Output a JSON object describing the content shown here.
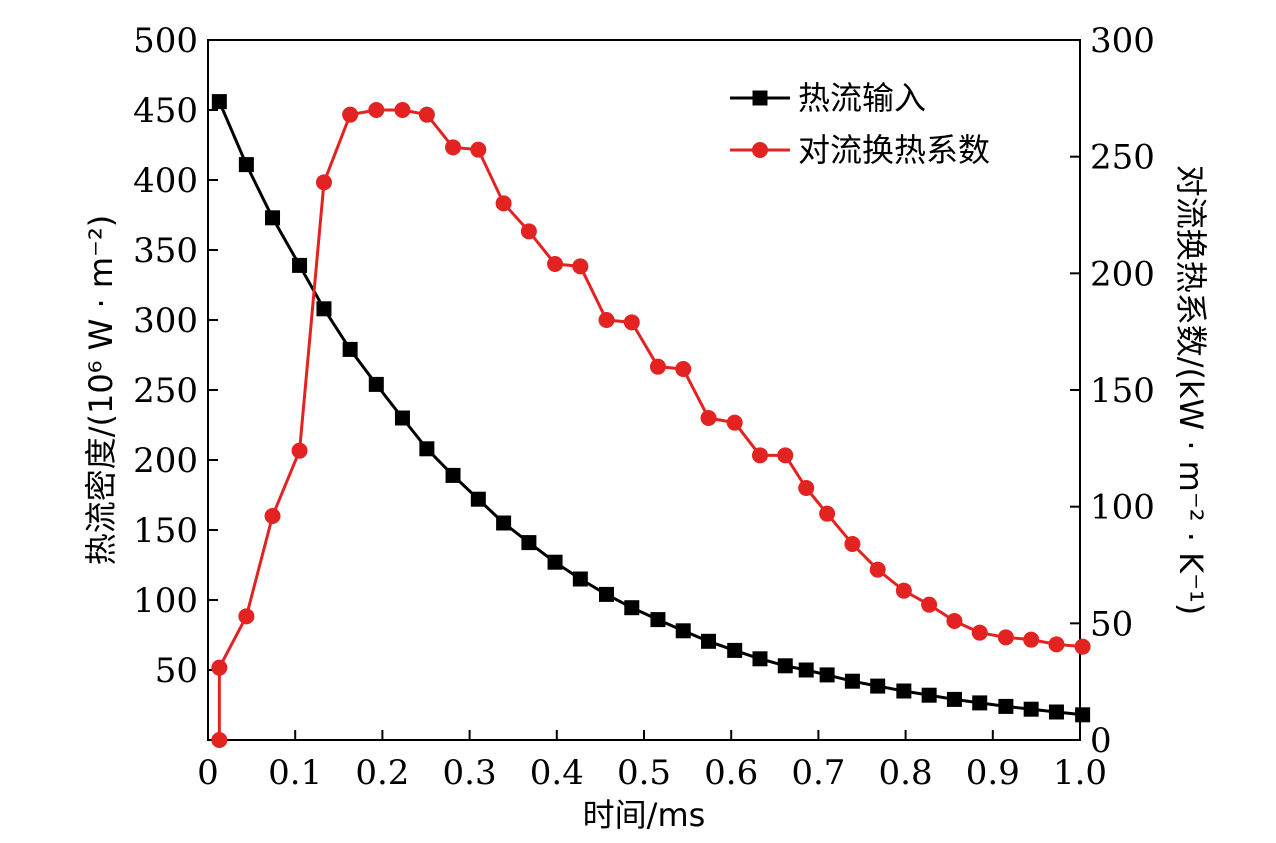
{
  "chart_data": {
    "type": "line",
    "xlabel": "时间/ms",
    "ylabel_left": "热流密度/(10⁶ W · m⁻²)",
    "ylabel_right": "对流换热系数/(kW · m⁻² · K⁻¹)",
    "xlim": [
      0,
      1.0
    ],
    "ylim_left": [
      0,
      500
    ],
    "ylim_right": [
      0,
      300
    ],
    "x_ticks": [
      "0",
      "0.1",
      "0.2",
      "0.3",
      "0.4",
      "0.5",
      "0.6",
      "0.7",
      "0.8",
      "0.9",
      "1.0"
    ],
    "y_left_ticks": [
      "50",
      "100",
      "150",
      "200",
      "250",
      "300",
      "350",
      "400",
      "450",
      "500"
    ],
    "y_right_ticks": [
      "0",
      "50",
      "100",
      "150",
      "200",
      "250",
      "300"
    ],
    "grid": false,
    "legend_position": "top-right",
    "series": [
      {
        "name": "热流输入",
        "axis": "left",
        "color": "#000000",
        "marker": "square",
        "x": [
          0.0,
          0.031,
          0.061,
          0.092,
          0.12,
          0.15,
          0.18,
          0.21,
          0.238,
          0.268,
          0.297,
          0.326,
          0.355,
          0.385,
          0.414,
          0.444,
          0.473,
          0.503,
          0.532,
          0.561,
          0.591,
          0.62,
          0.649,
          0.673,
          0.697,
          0.726,
          0.755,
          0.785,
          0.814,
          0.843,
          0.872,
          0.902,
          0.931,
          0.96,
          0.99
        ],
        "values": [
          456,
          411,
          373,
          339,
          308,
          279,
          254,
          230,
          208,
          189,
          172,
          155,
          141,
          127,
          115,
          104,
          94.5,
          86,
          78,
          70.5,
          64,
          58,
          53,
          50,
          46.5,
          42,
          38.5,
          35,
          32,
          29,
          26.5,
          24,
          22,
          20,
          18
        ]
      },
      {
        "name": "对流换热系数",
        "axis": "right",
        "color": "#e32222",
        "marker": "circle",
        "x": [
          0.0,
          0.0,
          0.031,
          0.061,
          0.092,
          0.12,
          0.15,
          0.18,
          0.21,
          0.238,
          0.268,
          0.297,
          0.326,
          0.355,
          0.385,
          0.414,
          0.444,
          0.473,
          0.503,
          0.532,
          0.561,
          0.591,
          0.62,
          0.649,
          0.673,
          0.697,
          0.726,
          0.755,
          0.785,
          0.814,
          0.843,
          0.872,
          0.902,
          0.931,
          0.96,
          0.99
        ],
        "values": [
          0,
          31,
          53,
          96,
          124,
          239,
          268,
          270,
          270,
          268,
          254,
          253,
          230,
          218,
          204,
          203,
          180,
          179,
          160,
          159,
          138,
          136,
          122,
          122,
          108,
          97,
          84,
          73,
          64,
          58,
          51,
          46,
          44,
          43,
          41,
          40
        ]
      }
    ]
  }
}
